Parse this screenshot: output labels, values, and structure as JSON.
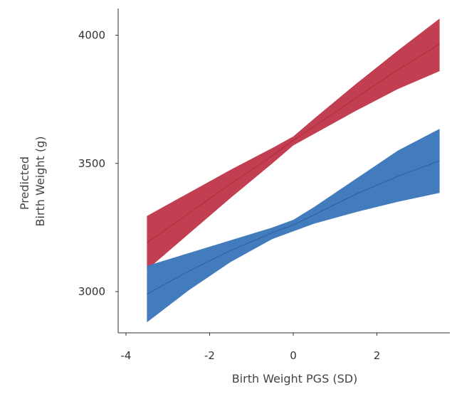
{
  "chart_data": {
    "type": "line",
    "title": "",
    "xlabel": "Birth Weight PGS (SD)",
    "ylabel_lines": [
      "Predicted",
      "Birth Weight (g)"
    ],
    "xlim": [
      -4.2,
      3.8
    ],
    "ylim": [
      2850,
      4080
    ],
    "xticks": [
      -4,
      -2,
      0,
      2
    ],
    "xtick_labels": [
      "-4",
      "-2",
      "0",
      "2"
    ],
    "yticks": [
      3000,
      3500,
      4000
    ],
    "ytick_labels": [
      "3000",
      "3500",
      "4000"
    ],
    "grid": false,
    "legend": "none",
    "x": [
      -3.5,
      -2.5,
      -1.5,
      -0.5,
      0.0,
      0.5,
      1.5,
      2.5,
      3.5
    ],
    "series": [
      {
        "color": "#c0394b",
        "line_color": "#b02a3c",
        "mean": [
          3190,
          3305,
          3420,
          3530,
          3590,
          3645,
          3755,
          3865,
          3965
        ],
        "lower": [
          3085,
          3225,
          3365,
          3500,
          3570,
          3615,
          3705,
          3790,
          3860
        ],
        "upper": [
          3295,
          3385,
          3475,
          3560,
          3605,
          3675,
          3810,
          3940,
          4065
        ]
      },
      {
        "color": "#3d78bb",
        "line_color": "#2a5f9e",
        "mean": [
          2990,
          3080,
          3160,
          3230,
          3260,
          3300,
          3380,
          3450,
          3510
        ],
        "lower": [
          2880,
          3005,
          3115,
          3205,
          3235,
          3265,
          3310,
          3350,
          3385
        ],
        "upper": [
          3100,
          3150,
          3200,
          3250,
          3280,
          3330,
          3440,
          3550,
          3635
        ]
      }
    ]
  }
}
